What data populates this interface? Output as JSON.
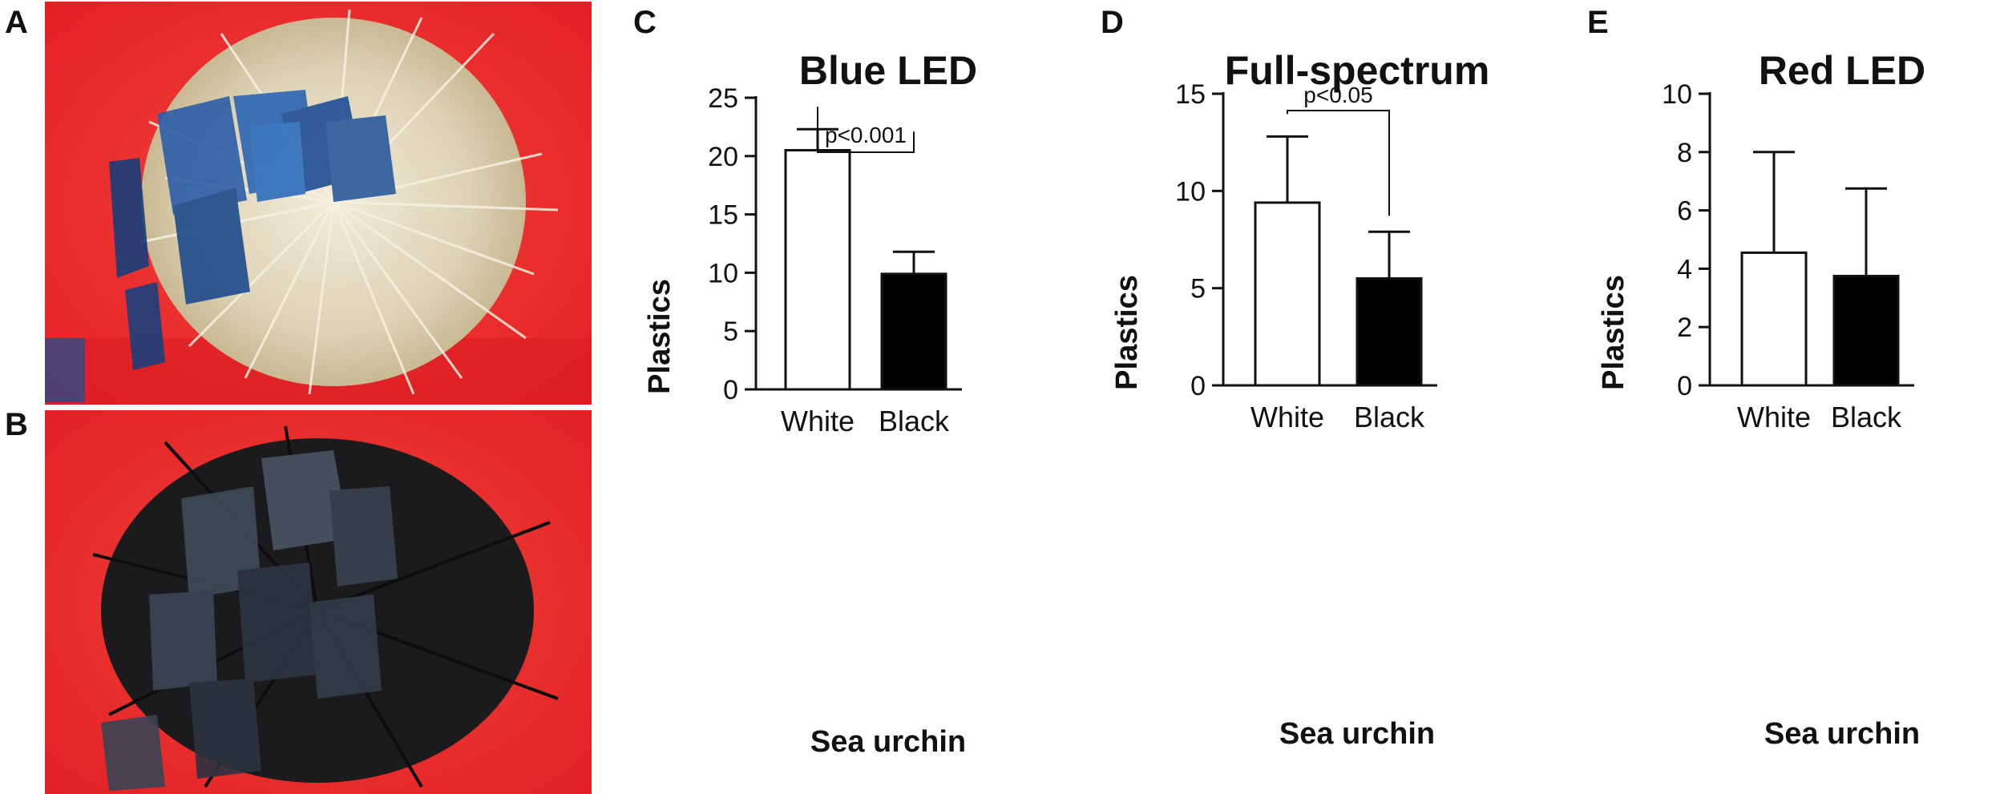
{
  "panels": {
    "A": "A",
    "B": "B",
    "C": "C",
    "D": "D",
    "E": "E"
  },
  "photos": [
    {
      "panel": "A",
      "subject": "white-sea-urchin-with-blue-plastic-squares",
      "background_color": "#ef2b2b"
    },
    {
      "panel": "B",
      "subject": "black-sea-urchin-with-dark-plastic-squares",
      "background_color": "#ef2b2b"
    }
  ],
  "chart_data": [
    {
      "type": "bar",
      "title": "Blue LED",
      "xlabel": "Sea urchin",
      "ylabel": "Plastics",
      "categories": [
        "White",
        "Black"
      ],
      "values": [
        20.5,
        9.9
      ],
      "errors": [
        1.8,
        1.9
      ],
      "ylim": [
        0,
        25
      ],
      "yticks": [
        0,
        5,
        10,
        15,
        20,
        25
      ],
      "bar_fills": [
        "#ffffff",
        "#000000"
      ],
      "significance": "p<0.001",
      "grid": false
    },
    {
      "type": "bar",
      "title": "Full-spectrum",
      "xlabel": "Sea urchin",
      "ylabel": "Plastics",
      "categories": [
        "White",
        "Black"
      ],
      "values": [
        9.4,
        5.5
      ],
      "errors": [
        3.4,
        2.4
      ],
      "ylim": [
        0,
        15
      ],
      "yticks": [
        0,
        5,
        10,
        15
      ],
      "bar_fills": [
        "#ffffff",
        "#000000"
      ],
      "significance": "p<0.05",
      "grid": false
    },
    {
      "type": "bar",
      "title": "Red LED",
      "xlabel": "Sea urchin",
      "ylabel": "Plastics",
      "categories": [
        "White",
        "Black"
      ],
      "values": [
        4.55,
        3.75
      ],
      "errors": [
        3.45,
        3.0
      ],
      "ylim": [
        0,
        10
      ],
      "yticks": [
        0,
        2,
        4,
        6,
        8,
        10
      ],
      "bar_fills": [
        "#ffffff",
        "#000000"
      ],
      "significance": "",
      "grid": false
    }
  ]
}
